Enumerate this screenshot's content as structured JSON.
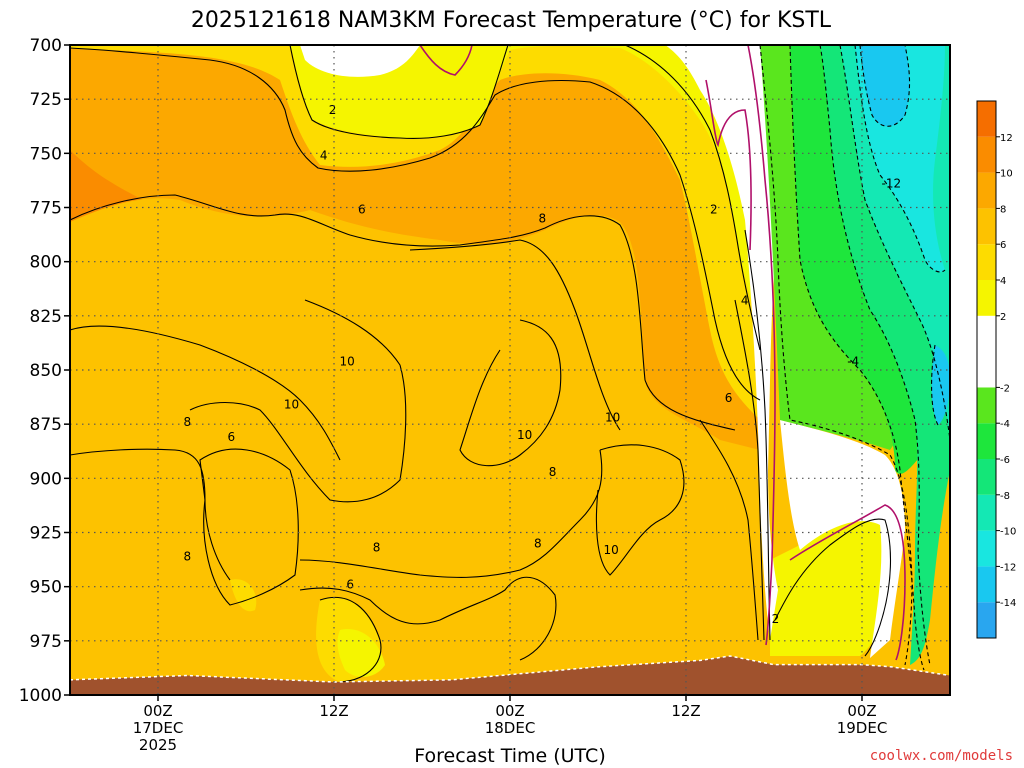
{
  "title": "2025121618 NAM3KM Forecast Temperature (°C) for KSTL",
  "credit": "coolwx.com/models",
  "chart_data": {
    "type": "heatmap",
    "title": "2025121618 NAM3KM Forecast Temperature (°C) for KSTL",
    "xlabel": "Forecast Time (UTC)",
    "ylabel": "",
    "y_ticks": [
      700,
      725,
      750,
      775,
      800,
      825,
      850,
      875,
      900,
      925,
      950,
      975,
      1000
    ],
    "y_tick_labels": [
      "700",
      "725",
      "750",
      "775",
      "800",
      "825",
      "850",
      "875",
      "900",
      "925",
      "950",
      "975",
      "1000"
    ],
    "ylim": [
      1000,
      700
    ],
    "xlim_hours": [
      -6,
      54
    ],
    "x_ticks": [
      {
        "hour": 0,
        "lines": [
          "00Z",
          "17DEC",
          "2025"
        ]
      },
      {
        "hour": 12,
        "lines": [
          "12Z"
        ]
      },
      {
        "hour": 24,
        "lines": [
          "00Z",
          "18DEC"
        ]
      },
      {
        "hour": 36,
        "lines": [
          "12Z"
        ]
      },
      {
        "hour": 48,
        "lines": [
          "00Z",
          "19DEC"
        ]
      }
    ],
    "colorbar": {
      "levels": [
        -16,
        -14,
        -12,
        -10,
        -8,
        -6,
        -4,
        -2,
        2,
        4,
        6,
        8,
        10,
        12,
        14
      ],
      "labels": [
        "-14",
        "-12",
        "-10",
        "-8",
        "-6",
        "-4",
        "-2",
        "2",
        "4",
        "6",
        "8",
        "10",
        "12"
      ],
      "colors": [
        "#29a6ef",
        "#19c8f0",
        "#19e6e0",
        "#14e8b4",
        "#14e678",
        "#1ee63c",
        "#5ae61e",
        "#ffffff",
        "#f5f500",
        "#fddc00",
        "#fdc200",
        "#fca800",
        "#fa8c00",
        "#f56e00"
      ]
    },
    "contour_labels": [
      {
        "value": "2",
        "hour": 11.9,
        "hPa": 730
      },
      {
        "value": "4",
        "hour": 11.3,
        "hPa": 751
      },
      {
        "value": "6",
        "hour": 13.9,
        "hPa": 776
      },
      {
        "value": "8",
        "hour": 26.2,
        "hPa": 780
      },
      {
        "value": "2",
        "hour": 37.9,
        "hPa": 776
      },
      {
        "value": "4",
        "hour": 40.0,
        "hPa": 818
      },
      {
        "value": "-12",
        "hour": 50.0,
        "hPa": 764
      },
      {
        "value": "-4",
        "hour": 47.4,
        "hPa": 846
      },
      {
        "value": "10",
        "hour": 12.9,
        "hPa": 846
      },
      {
        "value": "10",
        "hour": 9.1,
        "hPa": 866
      },
      {
        "value": "6",
        "hour": 38.9,
        "hPa": 863
      },
      {
        "value": "8",
        "hour": 2.0,
        "hPa": 874
      },
      {
        "value": "6",
        "hour": 5.0,
        "hPa": 881
      },
      {
        "value": "10",
        "hour": 31.0,
        "hPa": 872
      },
      {
        "value": "10",
        "hour": 25.0,
        "hPa": 880
      },
      {
        "value": "8",
        "hour": 26.9,
        "hPa": 897
      },
      {
        "value": "8",
        "hour": 2.0,
        "hPa": 936
      },
      {
        "value": "8",
        "hour": 14.9,
        "hPa": 932
      },
      {
        "value": "8",
        "hour": 25.9,
        "hPa": 930
      },
      {
        "value": "10",
        "hour": 30.9,
        "hPa": 933
      },
      {
        "value": "6",
        "hour": 13.1,
        "hPa": 949
      },
      {
        "value": "2",
        "hour": 42.1,
        "hPa": 965
      }
    ],
    "surface_pressure": [
      {
        "hour": -6,
        "hPa": 993
      },
      {
        "hour": 2,
        "hPa": 991
      },
      {
        "hour": 12,
        "hPa": 994
      },
      {
        "hour": 20,
        "hPa": 993
      },
      {
        "hour": 30,
        "hPa": 987
      },
      {
        "hour": 37,
        "hPa": 984
      },
      {
        "hour": 39,
        "hPa": 982
      },
      {
        "hour": 42,
        "hPa": 986
      },
      {
        "hour": 48,
        "hPa": 986
      },
      {
        "hour": 50,
        "hPa": 987
      },
      {
        "hour": 54,
        "hPa": 991
      }
    ]
  }
}
